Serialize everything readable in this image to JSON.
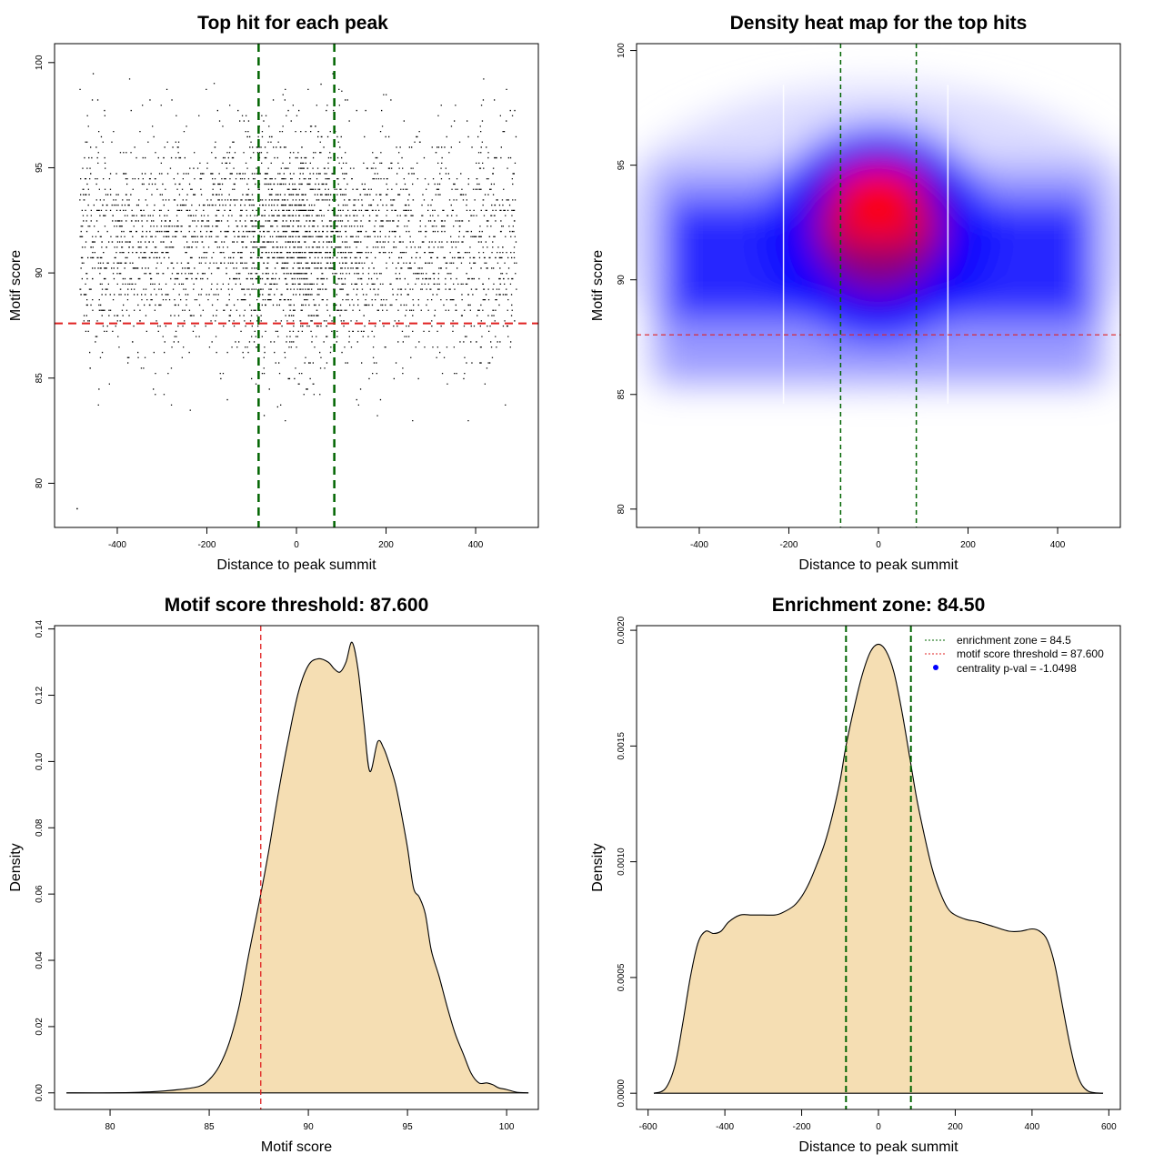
{
  "chart_data": [
    {
      "type": "scatter",
      "title": "Top hit for each peak",
      "xlabel": "Distance to peak summit",
      "ylabel": "Motif score",
      "xlim": [
        -540,
        540
      ],
      "ylim": [
        77.9,
        100.9
      ],
      "xticks": [
        -400,
        -200,
        0,
        200,
        400
      ],
      "yticks": [
        80,
        85,
        90,
        95,
        100
      ],
      "grid": false,
      "point_summary": {
        "x_range": [
          -500,
          500
        ],
        "y_range": [
          78.8,
          100
        ],
        "densest_score": 92.5,
        "densest_distance": 0
      },
      "vlines": [
        -84.5,
        84.5
      ],
      "hline": 87.6,
      "colors": {
        "points": "#000000",
        "vlines": "#006400",
        "hline": "#e02020"
      }
    },
    {
      "type": "heatmap",
      "title": "Density heat map for the top hits",
      "xlabel": "Distance to peak summit",
      "ylabel": "Motif score",
      "xlim": [
        -540,
        540
      ],
      "ylim": [
        79.2,
        100.3
      ],
      "xticks": [
        -400,
        -200,
        0,
        200,
        400
      ],
      "yticks": [
        80,
        85,
        90,
        95,
        100
      ],
      "grid": false,
      "density_peaks": [
        {
          "x": 0,
          "y": 94.0,
          "level": "highest"
        },
        {
          "x": 0,
          "y": 92.4,
          "level": "high"
        }
      ],
      "vlines": [
        -84.5,
        84.5
      ],
      "hline": 87.6,
      "colors": {
        "low": "#ffffff",
        "mid": "#0000ff",
        "high": "#ff0000",
        "vlines": "#006400",
        "hline": "#e02020"
      }
    },
    {
      "type": "area",
      "title": "Motif score threshold: 87.600",
      "xlabel": "Motif score",
      "ylabel": "Density",
      "xlim": [
        77.2,
        101.6
      ],
      "ylim": [
        -0.005,
        0.141
      ],
      "xticks": [
        80,
        85,
        90,
        95,
        100
      ],
      "yticks": [
        0.0,
        0.02,
        0.04,
        0.06,
        0.08,
        0.1,
        0.12,
        0.14
      ],
      "ytick_labels": [
        "0.00",
        "0.02",
        "0.04",
        "0.06",
        "0.08",
        "0.10",
        "0.12",
        "0.14"
      ],
      "grid": false,
      "series": [
        {
          "x": [
            77.8,
            80,
            82,
            83.5,
            84.5,
            85,
            85.5,
            86,
            86.5,
            87,
            87.6,
            88,
            88.5,
            89,
            89.5,
            90,
            90.5,
            91,
            91.3,
            91.6,
            91.9,
            92.2,
            92.5,
            92.8,
            93.1,
            93.5,
            93.8,
            94.1,
            94.4,
            94.7,
            95,
            95.3,
            95.6,
            95.9,
            96.2,
            96.6,
            97,
            97.4,
            97.8,
            98.2,
            98.6,
            99,
            99.3,
            99.6,
            100,
            100.5,
            101.1
          ],
          "y": [
            0,
            0,
            0.0003,
            0.001,
            0.002,
            0.004,
            0.008,
            0.015,
            0.026,
            0.042,
            0.06,
            0.073,
            0.091,
            0.107,
            0.121,
            0.129,
            0.131,
            0.13,
            0.128,
            0.127,
            0.13,
            0.136,
            0.128,
            0.112,
            0.097,
            0.106,
            0.104,
            0.099,
            0.093,
            0.084,
            0.074,
            0.062,
            0.059,
            0.054,
            0.043,
            0.035,
            0.026,
            0.018,
            0.012,
            0.006,
            0.003,
            0.003,
            0.0025,
            0.0015,
            0.001,
            0.0002,
            0
          ]
        }
      ],
      "vline": 87.6,
      "colors": {
        "fill": "#f5deb3",
        "line": "#000000",
        "vline": "#e02020"
      }
    },
    {
      "type": "area",
      "title": "Enrichment zone: 84.50",
      "xlabel": "Distance to peak summit",
      "ylabel": "Density",
      "xlim": [
        -630,
        630
      ],
      "ylim": [
        -7e-05,
        0.00202
      ],
      "xticks": [
        -600,
        -400,
        -200,
        0,
        200,
        400,
        600
      ],
      "yticks": [
        0,
        0.0005,
        0.001,
        0.0015,
        0.002
      ],
      "ytick_labels": [
        "0.0000",
        "0.0005",
        "0.0010",
        "0.0015",
        "0.0020"
      ],
      "grid": false,
      "series": [
        {
          "x": [
            -585,
            -555,
            -530,
            -510,
            -490,
            -470,
            -450,
            -430,
            -410,
            -390,
            -360,
            -330,
            -300,
            -270,
            -250,
            -220,
            -200,
            -180,
            -160,
            -140,
            -120,
            -100,
            -84.5,
            -60,
            -40,
            -20,
            0,
            20,
            40,
            60,
            84.5,
            100,
            120,
            140,
            160,
            180,
            200,
            230,
            260,
            300,
            340,
            370,
            400,
            420,
            440,
            460,
            480,
            500,
            520,
            545,
            585
          ],
          "y": [
            0,
            2e-05,
            0.00012,
            0.0003,
            0.0005,
            0.00065,
            0.0007,
            0.00069,
            0.0007,
            0.00074,
            0.00077,
            0.00077,
            0.00077,
            0.00077,
            0.00078,
            0.00081,
            0.00085,
            0.00091,
            0.00099,
            0.00108,
            0.0012,
            0.00135,
            0.0015,
            0.00169,
            0.00182,
            0.00191,
            0.00194,
            0.00191,
            0.00182,
            0.00166,
            0.00142,
            0.00127,
            0.00111,
            0.00097,
            0.00087,
            0.0008,
            0.00077,
            0.00075,
            0.00074,
            0.00072,
            0.0007,
            0.0007,
            0.00071,
            0.0007,
            0.00066,
            0.00055,
            0.00037,
            0.0002,
            7e-05,
            1e-05,
            0
          ]
        }
      ],
      "vlines": [
        -84.5,
        84.5
      ],
      "legend": {
        "position": "top-right",
        "entries": [
          {
            "label": "enrichment zone = 84.5",
            "kind": "line",
            "color": "#006400"
          },
          {
            "label": "motif score threshold = 87.600",
            "kind": "line",
            "color": "#e02020"
          },
          {
            "label": "centrality p-val = -1.0498",
            "kind": "point",
            "color": "#0000ff"
          }
        ]
      },
      "colors": {
        "fill": "#f5deb3",
        "line": "#000000",
        "vlines": "#006400"
      }
    }
  ]
}
